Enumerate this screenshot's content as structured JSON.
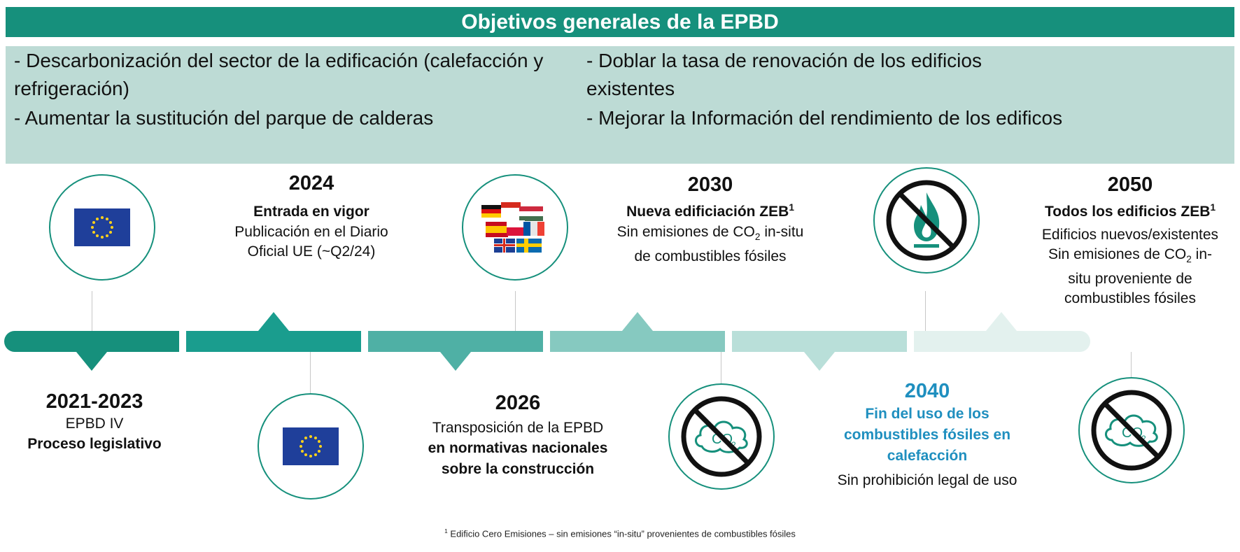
{
  "header": {
    "title": "Objetivos generales de la EPBD"
  },
  "objectives": {
    "left_1_line1": "- Descarbonización del sector de la edificación (calefacción y",
    "left_1_line2": "refrigeración)",
    "left_2": "- Aumentar la sustitución del parque de calderas",
    "right_1_line1": "- Doblar la tasa de renovación de los edificios",
    "right_1_line2": "existentes",
    "right_2": "- Mejorar la Información del rendimiento de los edificos"
  },
  "colors": {
    "header": "#16907c",
    "objectives_bg": "#bddbd5",
    "segments": [
      "#16907c",
      "#1a9d8e",
      "#4fb0a5",
      "#86c9c0",
      "#b9dfd9",
      "#e3f1ee"
    ],
    "highlight_text": "#1f8fbf"
  },
  "milestones": {
    "m2021": {
      "year": "2021-2023",
      "line1": "EPBD IV",
      "line2": "Proceso legislativo",
      "icon": "eu-flag-icon"
    },
    "m2024": {
      "year": "2024",
      "title": "Entrada en vigor",
      "line1": "Publicación en el Diario",
      "line2": "Oficial UE (~Q2/24)",
      "icon": "eu-flag-icon"
    },
    "m2026": {
      "year": "2026",
      "line1": "Transposición de la EPBD",
      "line2": "en normativas nacionales",
      "line3": "sobre la construcción",
      "icon": "national-flags-icon"
    },
    "m2030": {
      "year": "2030",
      "title": "Nueva edificiación ZEB",
      "title_sup": "1",
      "line1_a": "Sin emisiones de CO",
      "line1_sub": "2",
      "line1_b": " in-situ",
      "line2": "de combustibles fósiles",
      "icon": "no-co2-icon"
    },
    "m2040": {
      "year": "2040",
      "line1": "Fin del uso de los",
      "line2": "combustibles fósiles en",
      "line3": "calefacción",
      "line4": "Sin prohibición legal de uso",
      "icon": "no-flame-icon"
    },
    "m2050": {
      "year": "2050",
      "title": "Todos los edificios ZEB",
      "title_sup": "1",
      "line1": "Edificios nuevos/existentes",
      "line2_a": "Sin emisiones de CO",
      "line2_sub": "2",
      "line2_b": " in-",
      "line3": "situ proveniente de",
      "line4": "combustibles fósiles",
      "icon": "no-co2-icon"
    }
  },
  "icons": {
    "co2_label": "CO",
    "co2_sub": "2"
  },
  "footnote": {
    "marker": "1",
    "text": "Edificio Cero Emisiones – sin emisiones “in-situ” provenientes de combustibles fósiles"
  }
}
